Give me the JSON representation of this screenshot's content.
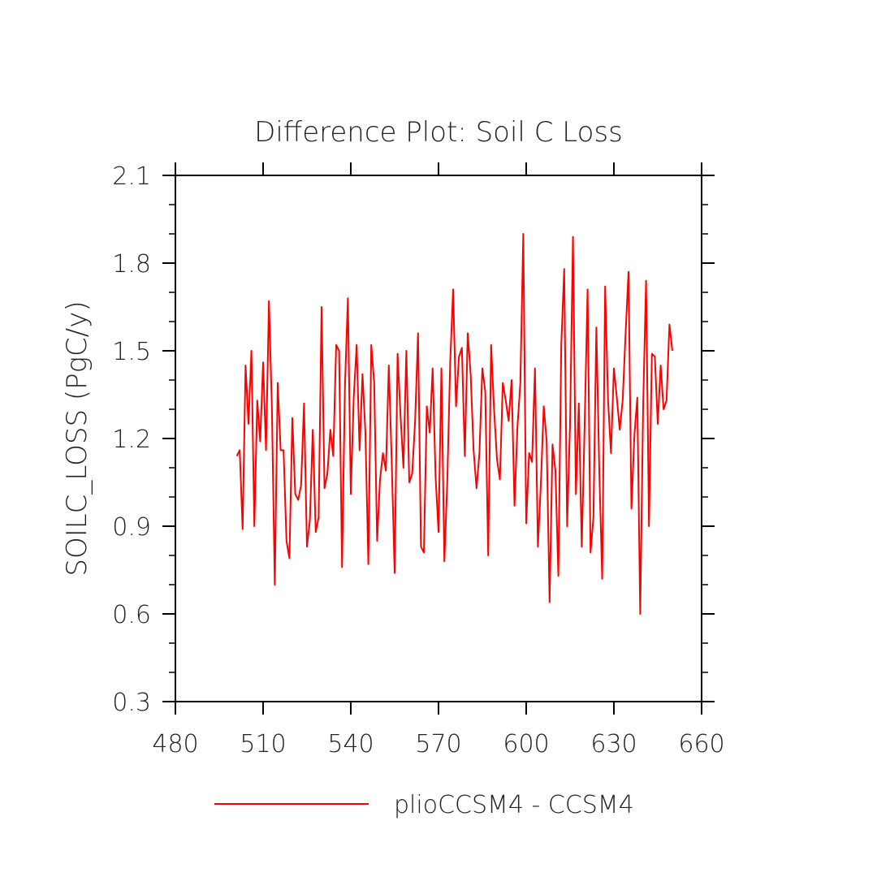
{
  "chart_data": {
    "type": "line",
    "title": "Difference Plot: Soil C Loss",
    "ylabel": "SOILC_LOSS   (PgC/y)",
    "xlabel": "",
    "xlim": [
      480,
      660
    ],
    "ylim": [
      0.3,
      2.1
    ],
    "x_ticks": [
      480,
      510,
      540,
      570,
      600,
      630,
      660
    ],
    "x_tick_labels": [
      "480",
      "510",
      "540",
      "570",
      "600",
      "630",
      "660"
    ],
    "y_ticks": [
      0.3,
      0.6,
      0.9,
      1.2,
      1.5,
      1.8,
      2.1
    ],
    "y_tick_labels": [
      "0.3",
      "0.6",
      "0.9",
      "1.2",
      "1.5",
      "1.8",
      "2.1"
    ],
    "grid": false,
    "legend_position": "bottom",
    "series": [
      {
        "name": "plioCCSM4 - CCSM4",
        "color": "#ff0000",
        "x_start": 501,
        "x_step": 1,
        "values": [
          1.14,
          1.16,
          0.89,
          1.45,
          1.25,
          1.5,
          0.9,
          1.33,
          1.19,
          1.46,
          1.16,
          1.67,
          1.31,
          0.7,
          1.39,
          1.16,
          1.16,
          0.85,
          0.79,
          1.27,
          1.01,
          0.99,
          1.04,
          1.32,
          0.83,
          0.92,
          1.23,
          0.88,
          0.93,
          1.65,
          1.03,
          1.08,
          1.23,
          1.14,
          1.52,
          1.5,
          0.76,
          1.38,
          1.68,
          1.01,
          1.34,
          1.52,
          1.16,
          1.42,
          1.22,
          0.77,
          1.52,
          1.39,
          0.85,
          1.06,
          1.15,
          1.09,
          1.45,
          1.12,
          0.74,
          1.49,
          1.28,
          1.1,
          1.5,
          1.05,
          1.08,
          1.26,
          1.56,
          0.83,
          0.81,
          1.31,
          1.22,
          1.44,
          1.07,
          0.88,
          1.44,
          0.78,
          1.05,
          1.46,
          1.71,
          1.31,
          1.48,
          1.51,
          1.14,
          1.56,
          1.42,
          1.16,
          1.03,
          1.15,
          1.44,
          1.36,
          0.8,
          1.52,
          1.3,
          1.13,
          1.06,
          1.39,
          1.33,
          1.26,
          1.4,
          0.97,
          1.24,
          1.39,
          1.9,
          0.91,
          1.15,
          1.12,
          1.44,
          0.83,
          1.04,
          1.31,
          1.19,
          0.64,
          1.18,
          1.09,
          0.73,
          1.52,
          1.78,
          0.9,
          1.25,
          1.89,
          1.01,
          1.32,
          0.83,
          1.25,
          1.71,
          0.81,
          0.93,
          1.58,
          1.09,
          0.72,
          1.72,
          1.33,
          1.15,
          1.44,
          1.34,
          1.23,
          1.33,
          1.56,
          1.77,
          0.96,
          1.21,
          1.34,
          0.6,
          1.31,
          1.74,
          0.9,
          1.49,
          1.48,
          1.25,
          1.45,
          1.3,
          1.33,
          1.59,
          1.5
        ]
      }
    ]
  }
}
